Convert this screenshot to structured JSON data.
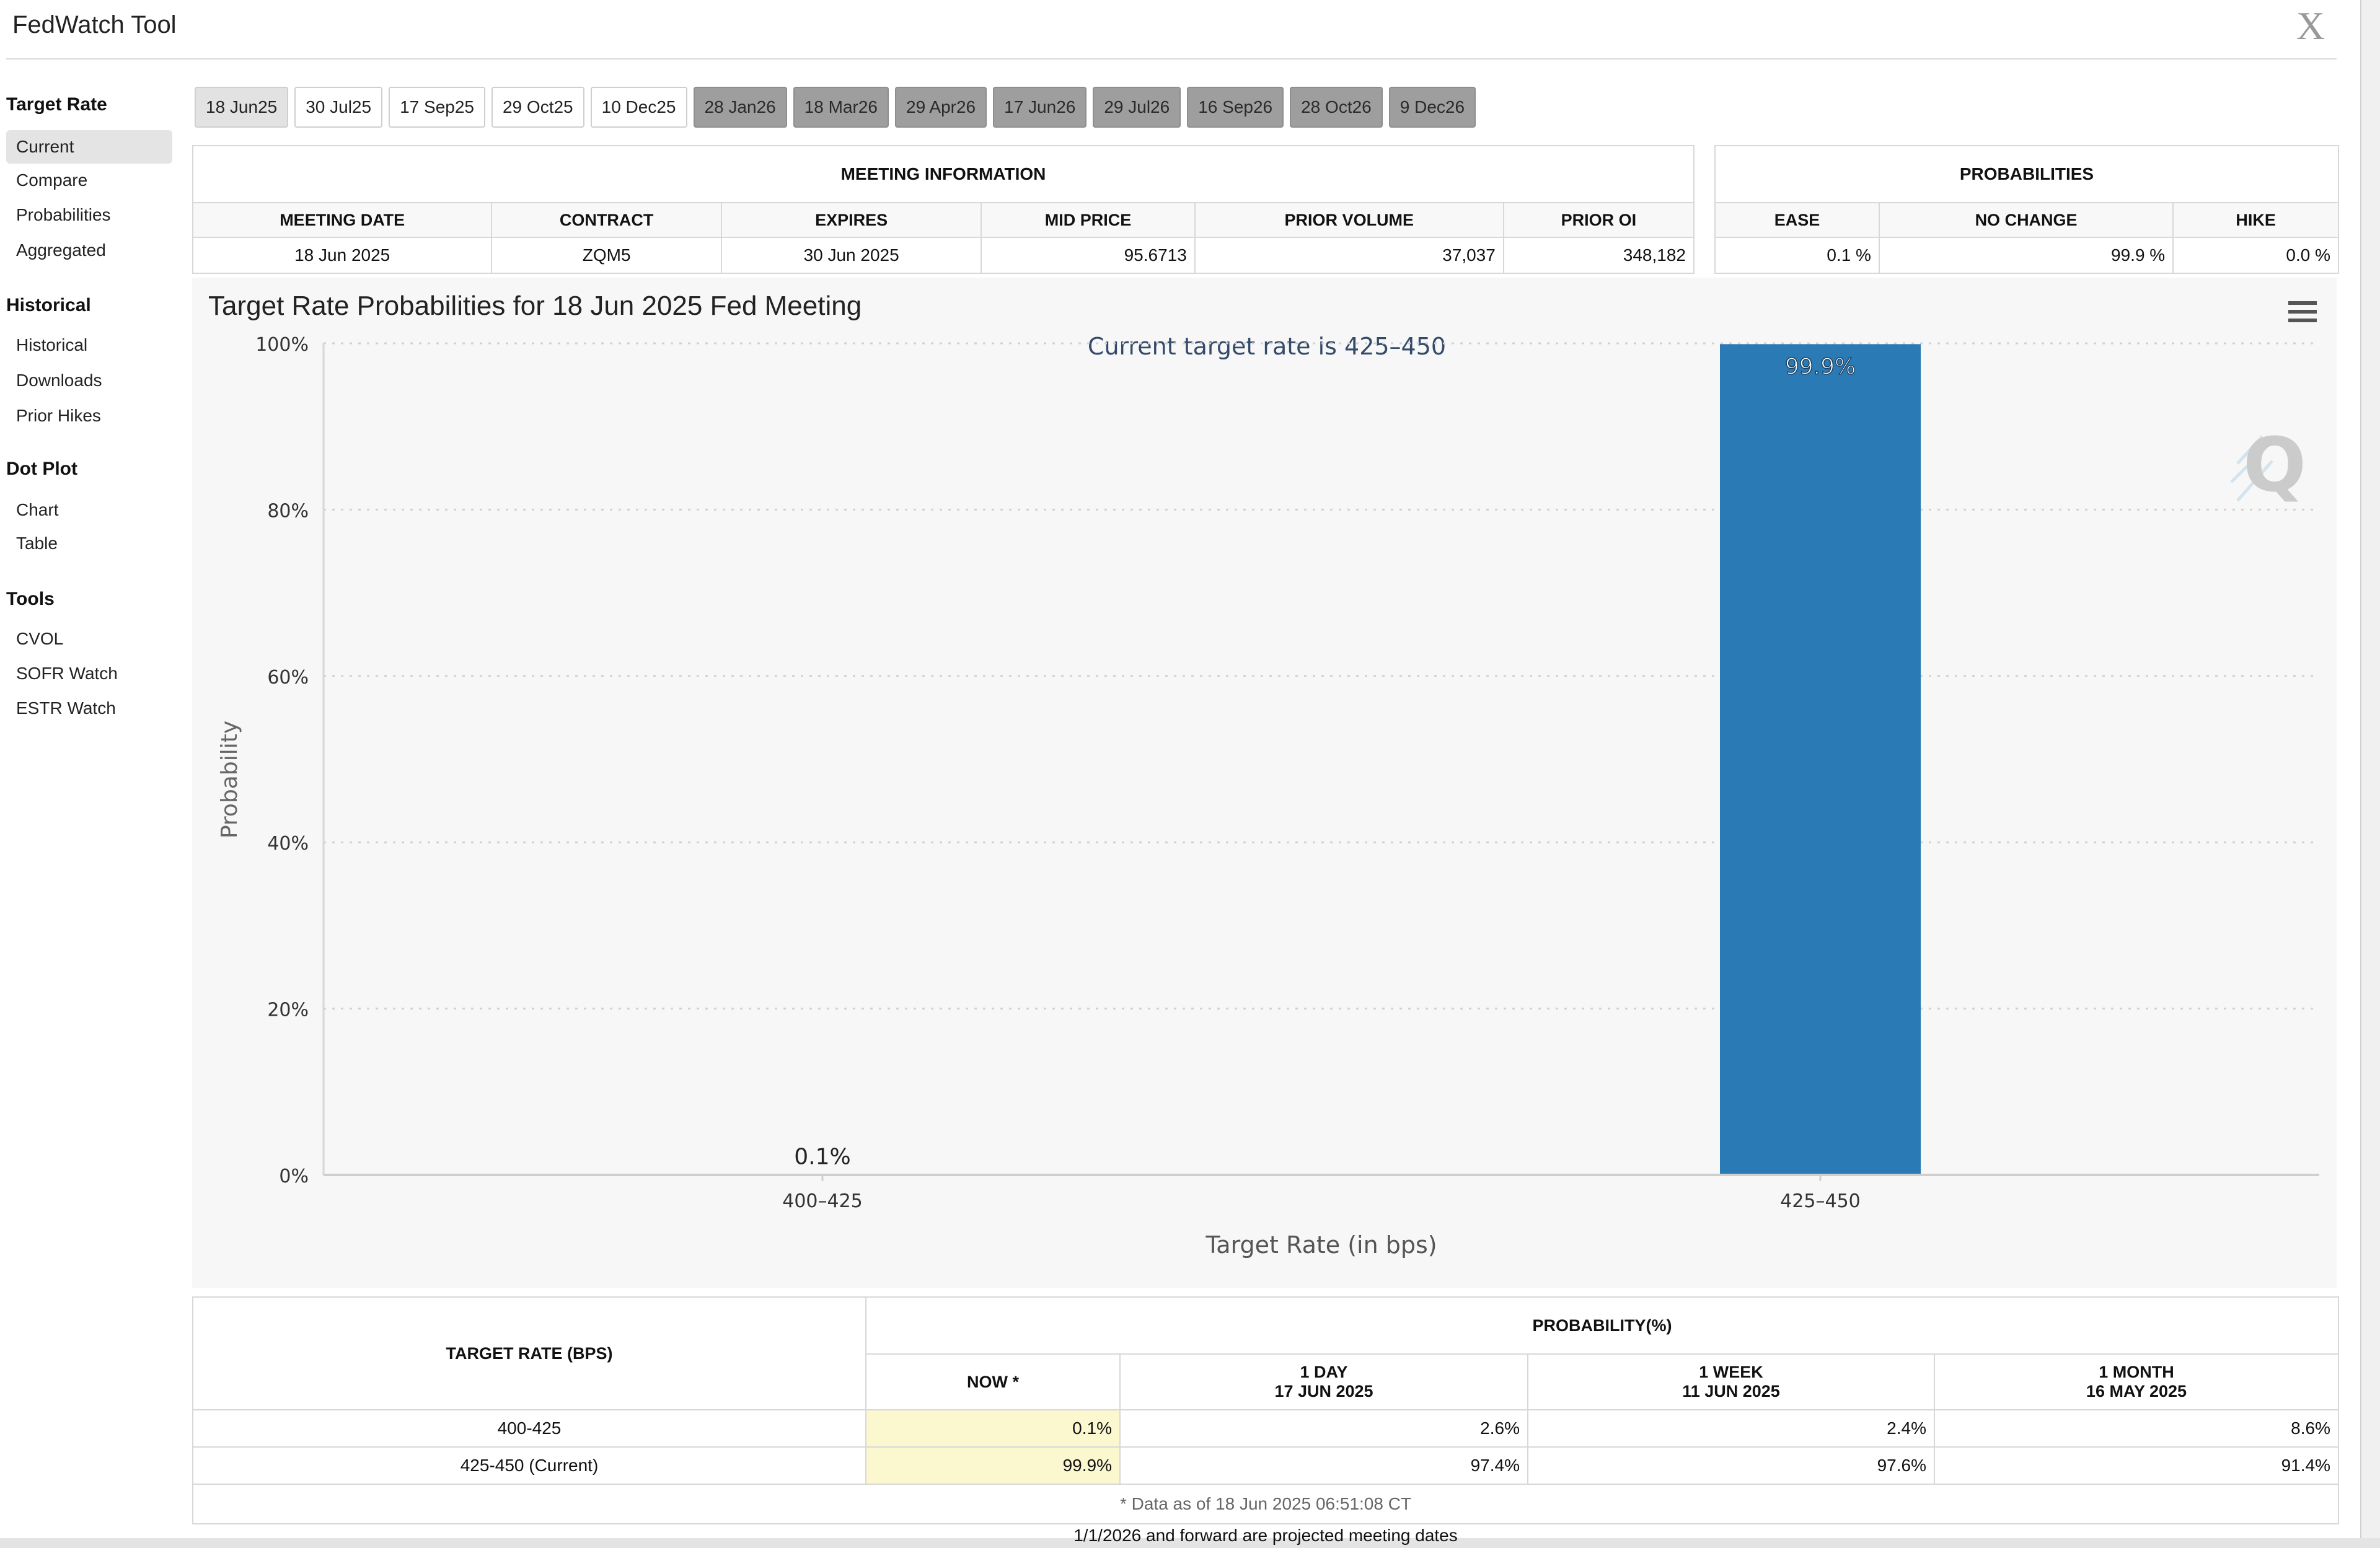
{
  "window": {
    "title": "FedWatch Tool",
    "close_glyph": "X"
  },
  "sidebar": {
    "sections": [
      {
        "heading": "Target Rate",
        "items": [
          "Current",
          "Compare",
          "Probabilities",
          "Aggregated"
        ]
      },
      {
        "heading": "Historical",
        "items": [
          "Historical",
          "Downloads",
          "Prior Hikes"
        ]
      },
      {
        "heading": "Dot Plot",
        "items": [
          "Chart",
          "Table"
        ]
      },
      {
        "heading": "Tools",
        "items": [
          "CVOL",
          "SOFR Watch",
          "ESTR Watch"
        ]
      }
    ],
    "active": "Current"
  },
  "tabs": [
    {
      "label": "18 Jun25",
      "state": "active"
    },
    {
      "label": "30 Jul25",
      "state": "normal"
    },
    {
      "label": "17 Sep25",
      "state": "normal"
    },
    {
      "label": "29 Oct25",
      "state": "normal"
    },
    {
      "label": "10 Dec25",
      "state": "normal"
    },
    {
      "label": "28 Jan26",
      "state": "dim"
    },
    {
      "label": "18 Mar26",
      "state": "dim"
    },
    {
      "label": "29 Apr26",
      "state": "dim"
    },
    {
      "label": "17 Jun26",
      "state": "dim"
    },
    {
      "label": "29 Jul26",
      "state": "dim"
    },
    {
      "label": "16 Sep26",
      "state": "dim"
    },
    {
      "label": "28 Oct26",
      "state": "dim"
    },
    {
      "label": "9 Dec26",
      "state": "dim"
    }
  ],
  "meeting_info": {
    "caption": "MEETING INFORMATION",
    "headers": [
      "MEETING DATE",
      "CONTRACT",
      "EXPIRES",
      "MID PRICE",
      "PRIOR VOLUME",
      "PRIOR OI"
    ],
    "row": [
      "18 Jun 2025",
      "ZQM5",
      "30 Jun 2025",
      "95.6713",
      "37,037",
      "348,182"
    ]
  },
  "probabilities": {
    "caption": "PROBABILITIES",
    "headers": [
      "EASE",
      "NO CHANGE",
      "HIKE"
    ],
    "row": [
      "0.1 %",
      "99.9 %",
      "0.0 %"
    ]
  },
  "chart": {
    "menu_icon": "hamburger-menu-icon",
    "watermark_icon": "q-logo-icon",
    "watermark_text": "Q",
    "bar_color": "#2a7ab5"
  },
  "chart_data": {
    "type": "bar",
    "title": "Target Rate Probabilities for 18 Jun 2025 Fed Meeting",
    "subtitle": "Current target rate is 425–450",
    "xlabel": "Target Rate (in bps)",
    "ylabel": "Probability",
    "categories": [
      "400–425",
      "425–450"
    ],
    "values": [
      0.1,
      99.9
    ],
    "data_labels": [
      "0.1%",
      "99.9%"
    ],
    "ylim": [
      0,
      100
    ],
    "yticks": [
      "0%",
      "20%",
      "40%",
      "60%",
      "80%",
      "100%"
    ],
    "grid": true,
    "legend": "none"
  },
  "prob_table": {
    "rate_header": "TARGET RATE (BPS)",
    "prob_header": "PROBABILITY(%)",
    "columns": [
      {
        "line1": "NOW *",
        "line2": ""
      },
      {
        "line1": "1 DAY",
        "line2": "17 JUN 2025"
      },
      {
        "line1": "1 WEEK",
        "line2": "11 JUN 2025"
      },
      {
        "line1": "1 MONTH",
        "line2": "16 MAY 2025"
      }
    ],
    "rows": [
      {
        "rate": "400-425",
        "values": [
          "0.1%",
          "2.6%",
          "2.4%",
          "8.6%"
        ]
      },
      {
        "rate": "425-450 (Current)",
        "values": [
          "99.9%",
          "97.4%",
          "97.6%",
          "91.4%"
        ]
      }
    ],
    "footnote": "* Data as of 18 Jun 2025 06:51:08 CT"
  },
  "footer_note": "1/1/2026 and forward are projected meeting dates"
}
